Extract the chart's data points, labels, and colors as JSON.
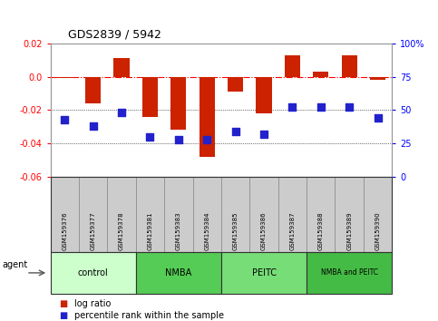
{
  "title": "GDS2839 / 5942",
  "samples": [
    "GSM159376",
    "GSM159377",
    "GSM159378",
    "GSM159381",
    "GSM159383",
    "GSM159384",
    "GSM159385",
    "GSM159386",
    "GSM159387",
    "GSM159388",
    "GSM159389",
    "GSM159390"
  ],
  "log_ratio": [
    -0.001,
    -0.016,
    0.011,
    -0.024,
    -0.032,
    -0.048,
    -0.009,
    -0.022,
    0.013,
    0.003,
    0.013,
    -0.002
  ],
  "percentile_rank": [
    43,
    38,
    48,
    30,
    28,
    28,
    34,
    32,
    52,
    52,
    52,
    44
  ],
  "groups": [
    {
      "label": "control",
      "start": 0,
      "end": 3,
      "color": "#ccffcc"
    },
    {
      "label": "NMBA",
      "start": 3,
      "end": 6,
      "color": "#55cc55"
    },
    {
      "label": "PEITC",
      "start": 6,
      "end": 9,
      "color": "#77dd77"
    },
    {
      "label": "NMBA and PEITC",
      "start": 9,
      "end": 12,
      "color": "#44bb44"
    }
  ],
  "bar_color": "#cc2200",
  "dot_color": "#2222cc",
  "ylim_left": [
    -0.06,
    0.02
  ],
  "ylim_right": [
    0,
    100
  ],
  "yticks_left": [
    -0.06,
    -0.04,
    -0.02,
    0.0,
    0.02
  ],
  "yticks_right": [
    0,
    25,
    50,
    75,
    100
  ],
  "bar_width": 0.55,
  "dot_size": 28
}
